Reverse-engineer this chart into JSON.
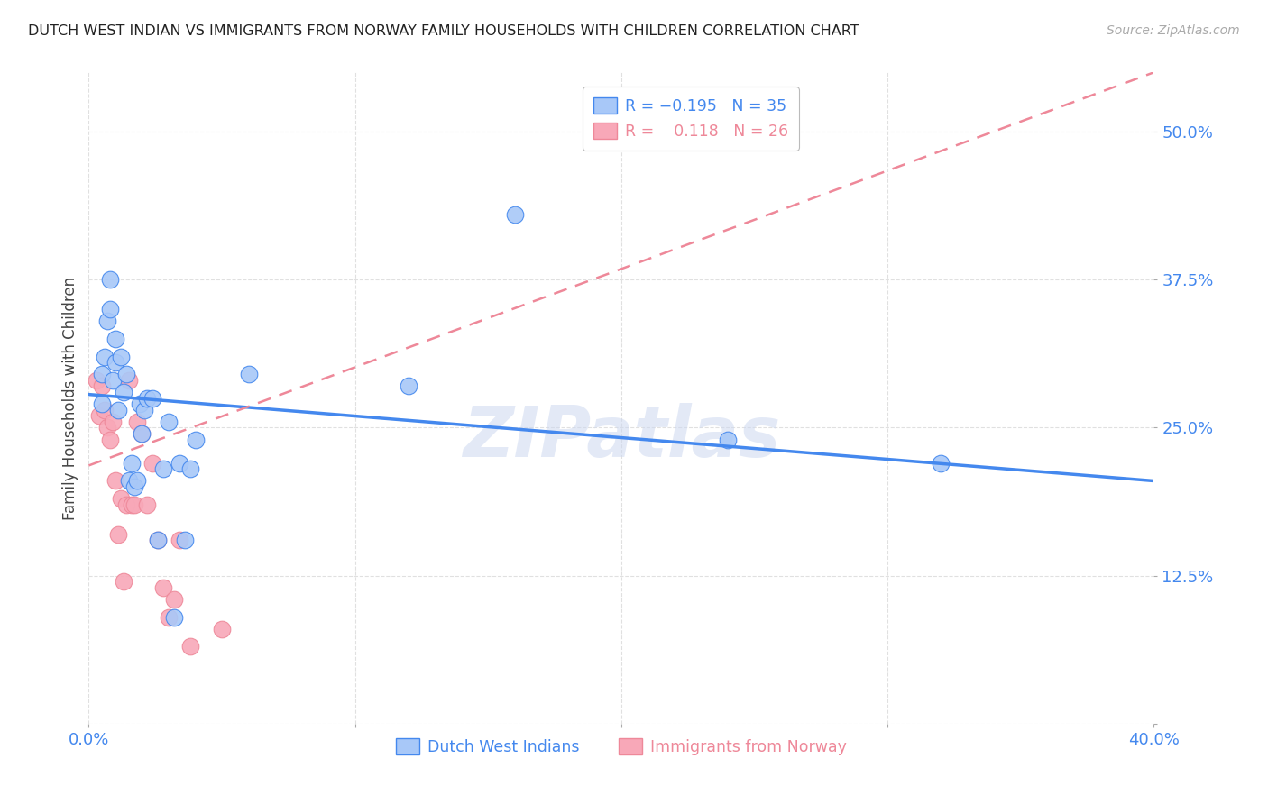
{
  "title": "DUTCH WEST INDIAN VS IMMIGRANTS FROM NORWAY FAMILY HOUSEHOLDS WITH CHILDREN CORRELATION CHART",
  "source": "Source: ZipAtlas.com",
  "ylabel": "Family Households with Children",
  "xlim": [
    0.0,
    0.4
  ],
  "ylim": [
    0.0,
    0.55
  ],
  "yticks": [
    0.0,
    0.125,
    0.25,
    0.375,
    0.5
  ],
  "ytick_labels": [
    "",
    "12.5%",
    "25.0%",
    "37.5%",
    "50.0%"
  ],
  "xticks": [
    0.0,
    0.1,
    0.2,
    0.3,
    0.4
  ],
  "blue_R": -0.195,
  "blue_N": 35,
  "pink_R": 0.118,
  "pink_N": 26,
  "blue_color": "#a8c8f8",
  "pink_color": "#f8a8b8",
  "blue_line_color": "#4488ee",
  "pink_line_color": "#ee8899",
  "legend_label_blue": "Dutch West Indians",
  "legend_label_pink": "Immigrants from Norway",
  "blue_scatter_x": [
    0.005,
    0.005,
    0.006,
    0.007,
    0.008,
    0.008,
    0.009,
    0.01,
    0.01,
    0.011,
    0.012,
    0.013,
    0.014,
    0.015,
    0.016,
    0.017,
    0.018,
    0.019,
    0.02,
    0.021,
    0.022,
    0.024,
    0.026,
    0.028,
    0.03,
    0.032,
    0.034,
    0.036,
    0.038,
    0.04,
    0.06,
    0.12,
    0.16,
    0.24,
    0.32
  ],
  "blue_scatter_y": [
    0.295,
    0.27,
    0.31,
    0.34,
    0.375,
    0.35,
    0.29,
    0.325,
    0.305,
    0.265,
    0.31,
    0.28,
    0.295,
    0.205,
    0.22,
    0.2,
    0.205,
    0.27,
    0.245,
    0.265,
    0.275,
    0.275,
    0.155,
    0.215,
    0.255,
    0.09,
    0.22,
    0.155,
    0.215,
    0.24,
    0.295,
    0.285,
    0.43,
    0.24,
    0.22
  ],
  "pink_scatter_x": [
    0.003,
    0.004,
    0.005,
    0.006,
    0.007,
    0.008,
    0.009,
    0.01,
    0.011,
    0.012,
    0.013,
    0.014,
    0.015,
    0.016,
    0.017,
    0.018,
    0.02,
    0.022,
    0.024,
    0.026,
    0.028,
    0.03,
    0.032,
    0.034,
    0.038,
    0.05
  ],
  "pink_scatter_y": [
    0.29,
    0.26,
    0.285,
    0.265,
    0.25,
    0.24,
    0.255,
    0.205,
    0.16,
    0.19,
    0.12,
    0.185,
    0.29,
    0.185,
    0.185,
    0.255,
    0.245,
    0.185,
    0.22,
    0.155,
    0.115,
    0.09,
    0.105,
    0.155,
    0.065,
    0.08
  ],
  "blue_line_x": [
    0.0,
    0.4
  ],
  "blue_line_y": [
    0.278,
    0.205
  ],
  "pink_line_x": [
    0.0,
    0.4
  ],
  "pink_line_y": [
    0.218,
    0.55
  ],
  "watermark": "ZIPatlas",
  "background_color": "#ffffff",
  "grid_color": "#e0e0e0"
}
